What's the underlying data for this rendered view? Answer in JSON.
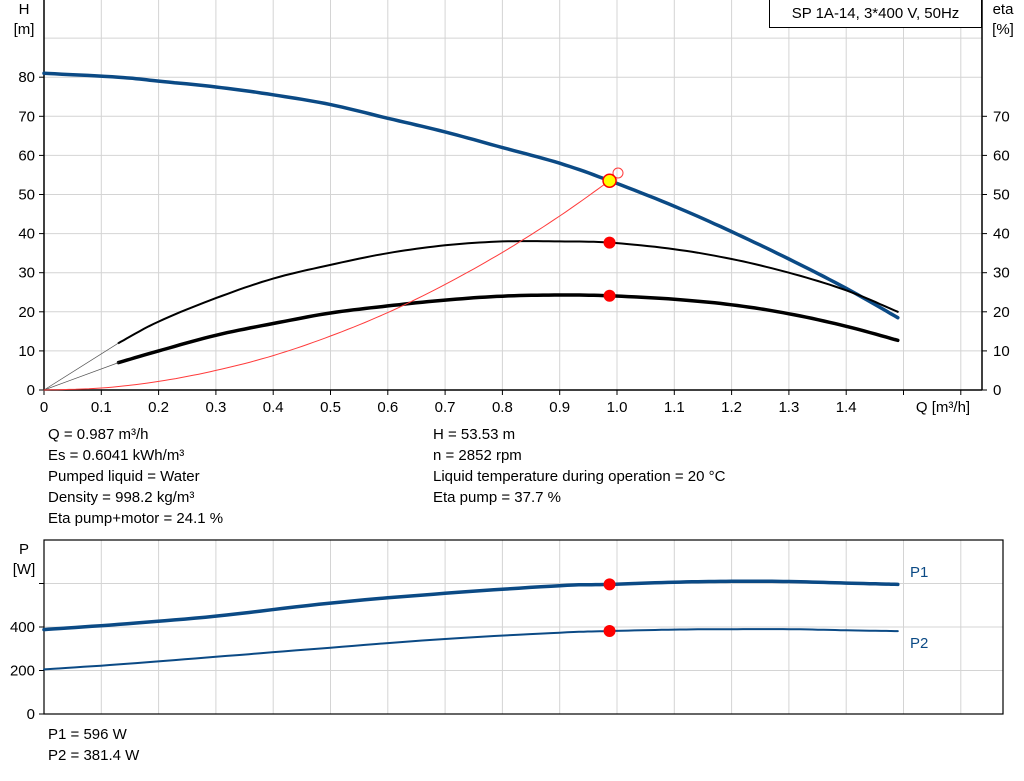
{
  "chart_data": [
    {
      "type": "line",
      "title": "SP 1A-14, 3*400 V, 50Hz",
      "xlabel": "Q [m³/h]",
      "ylabel": "H [m]",
      "ylabel_lines": [
        "H",
        "[m]"
      ],
      "y2label_lines": [
        "eta",
        "[%]"
      ],
      "xlim": [
        0,
        1.6
      ],
      "ylim": [
        0,
        90
      ],
      "y2lim": [
        0,
        90
      ],
      "xticks": [
        "0",
        "0.1",
        "0.2",
        "0.3",
        "0.4",
        "0.5",
        "0.6",
        "0.7",
        "0.8",
        "0.9",
        "1.0",
        "1.1",
        "1.2",
        "1.3",
        "1.4"
      ],
      "yticks": [
        "0",
        "10",
        "20",
        "30",
        "40",
        "50",
        "60",
        "70",
        "80"
      ],
      "y2ticks": [
        "0",
        "10",
        "20",
        "30",
        "40",
        "50",
        "60",
        "70"
      ],
      "grid": true,
      "colors": {
        "head": "#0b4a85",
        "eta": "#000000",
        "system": "#ff3b3b",
        "point": "#ff0000",
        "duty": "#ffff00"
      },
      "series": [
        {
          "key": "head",
          "axis": "H",
          "x": [
            0,
            0.13,
            0.2,
            0.3,
            0.4,
            0.5,
            0.6,
            0.7,
            0.8,
            0.9,
            0.987,
            1.1,
            1.2,
            1.3,
            1.4,
            1.49
          ],
          "y": [
            81,
            80,
            79,
            77.5,
            75.5,
            73,
            69.5,
            66,
            62,
            58,
            53.53,
            47,
            40.5,
            33.5,
            26,
            18.5
          ]
        },
        {
          "key": "eta_pump",
          "axis": "eta",
          "x": [
            0.13,
            0.2,
            0.3,
            0.4,
            0.5,
            0.6,
            0.7,
            0.8,
            0.9,
            0.987,
            1.1,
            1.2,
            1.3,
            1.4,
            1.49
          ],
          "y": [
            12,
            17.5,
            23.5,
            28.5,
            32,
            35,
            37,
            38,
            38,
            37.7,
            36,
            33.5,
            30,
            25.5,
            20
          ]
        },
        {
          "key": "eta_pump_motor",
          "axis": "eta",
          "x": [
            0.13,
            0.2,
            0.3,
            0.4,
            0.5,
            0.6,
            0.7,
            0.8,
            0.9,
            0.987,
            1.1,
            1.2,
            1.3,
            1.4,
            1.49
          ],
          "y": [
            7,
            10,
            14,
            17,
            19.7,
            21.5,
            23,
            24,
            24.3,
            24.1,
            23.2,
            21.8,
            19.5,
            16.3,
            12.7
          ]
        },
        {
          "key": "system",
          "axis": "H",
          "x": [
            0,
            0.1,
            0.2,
            0.3,
            0.4,
            0.5,
            0.6,
            0.7,
            0.8,
            0.9,
            0.987
          ],
          "y": [
            0,
            0.5,
            2.2,
            5,
            8.8,
            13.8,
            19.8,
            27,
            35.2,
            44.5,
            53.53
          ]
        }
      ],
      "duty_point": {
        "Q": 0.987,
        "H": 53.53,
        "eta_pump": 37.7,
        "eta_pump_motor": 24.1
      },
      "requested_point": {
        "Q": 1.0,
        "H": 55.5
      }
    },
    {
      "type": "line",
      "ylabel_lines": [
        "P",
        "[W]"
      ],
      "xlim": [
        0,
        1.65
      ],
      "ylim": [
        0,
        800
      ],
      "yticks": [
        "0",
        "200",
        "400",
        ""
      ],
      "grid": true,
      "series": [
        {
          "name": "P1",
          "x": [
            0,
            0.13,
            0.3,
            0.5,
            0.7,
            0.9,
            0.987,
            1.1,
            1.2,
            1.3,
            1.4,
            1.49
          ],
          "y": [
            388,
            412,
            450,
            510,
            555,
            590,
            596,
            606,
            610,
            609,
            602,
            596
          ]
        },
        {
          "name": "P2",
          "x": [
            0,
            0.13,
            0.3,
            0.5,
            0.7,
            0.9,
            0.987,
            1.1,
            1.2,
            1.3,
            1.4,
            1.49
          ],
          "y": [
            205,
            228,
            263,
            305,
            345,
            374,
            381.4,
            388,
            390,
            390,
            385,
            381
          ]
        }
      ],
      "duty_point": {
        "Q": 0.987,
        "P1": 596,
        "P2": 381.4
      }
    }
  ],
  "info_left": [
    "Q = 0.987 m³/h",
    "Es = 0.6041 kWh/m³",
    "Pumped liquid = Water",
    "Density = 998.2 kg/m³",
    "Eta pump+motor = 24.1 %"
  ],
  "info_right": [
    "H = 53.53 m",
    "n = 2852 rpm",
    "Liquid temperature during operation = 20 °C",
    "Eta pump = 37.7 %"
  ],
  "power_info": [
    "P1 = 596 W",
    "P2 = 381.4 W"
  ]
}
